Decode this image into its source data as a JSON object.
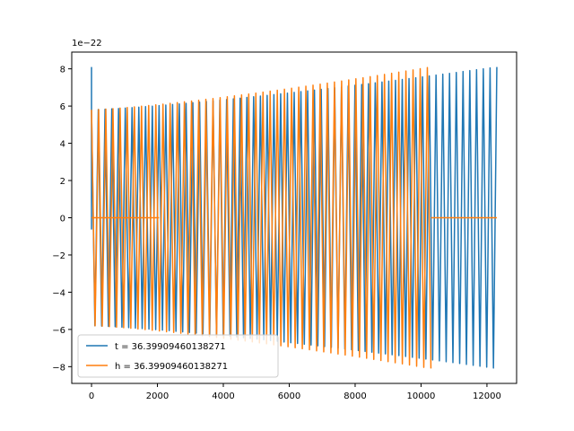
{
  "chart_data": {
    "type": "line",
    "title": "",
    "xlabel": "",
    "ylabel": "",
    "y_offset_label": "1e−22",
    "xlim": [
      -600,
      12900
    ],
    "ylim": [
      -8.9,
      8.9
    ],
    "x_ticks": [
      0,
      2000,
      4000,
      6000,
      8000,
      10000,
      12000
    ],
    "x_tick_labels": [
      "0",
      "2000",
      "4000",
      "6000",
      "8000",
      "10000",
      "12000"
    ],
    "y_ticks": [
      -8,
      -6,
      -4,
      -2,
      0,
      2,
      4,
      6,
      8
    ],
    "y_tick_labels": [
      "−8",
      "−6",
      "−4",
      "−2",
      "0",
      "2",
      "4",
      "6",
      "8"
    ],
    "grid": false,
    "legend_position": "lower-left",
    "series": [
      {
        "name": "t = 36.39909460138271",
        "color": "#1f77b4",
        "segments": [
          {
            "x_start": 0,
            "x_end": 12300,
            "amp_start": 5.8,
            "amp_end": 8.1,
            "cycles": 120,
            "note_spike_at_start": 8.1
          }
        ]
      },
      {
        "name": "h = 36.39909460138271",
        "color": "#ff7f0e",
        "segments": [
          {
            "x_start": 0,
            "x_end": 10300,
            "amp_start": 5.8,
            "amp_end": 8.1,
            "cycles": 95
          },
          {
            "flat_value": 0,
            "ranges": [
              [
                0,
                2050
              ],
              [
                10300,
                12300
              ]
            ]
          }
        ]
      }
    ]
  }
}
